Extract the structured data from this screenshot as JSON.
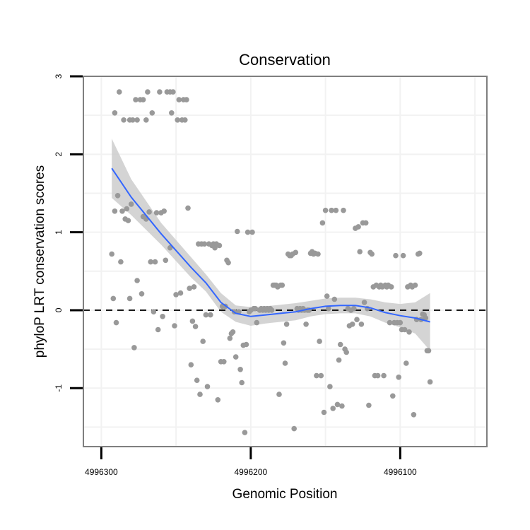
{
  "chart_data": {
    "type": "scatter",
    "title": "Conservation",
    "xlabel": "Genomic Position",
    "ylabel": "phyloP LRT conservation scores",
    "x_reversed": true,
    "xlim": [
      4996312,
      4996042
    ],
    "ylim": [
      -1.75,
      3.0
    ],
    "x_ticks": [
      4996300,
      4996200,
      4996100
    ],
    "x_tick_labels": [
      "4996300",
      "4996200",
      "4996100"
    ],
    "y_ticks": [
      3,
      2,
      1,
      0,
      -1
    ],
    "y_tick_labels": [
      "3",
      "2",
      "1",
      "0",
      "-1"
    ],
    "grid": true,
    "reference_line": {
      "y": 0,
      "style": "dashed",
      "color": "#000000"
    },
    "colors": {
      "points": "#999999",
      "smooth_line": "#3366ff",
      "confidence_band": "#cccccc",
      "panel_border": "#7f7f7f",
      "grid": "#f2f2f2"
    },
    "series": [
      {
        "type": "scatter",
        "points": [
          [
            4996293,
            0.72
          ],
          [
            4996292,
            0.15
          ],
          [
            4996291,
            1.27
          ],
          [
            4996291,
            2.53
          ],
          [
            4996290,
            -0.16
          ],
          [
            4996289,
            1.47
          ],
          [
            4996288,
            2.8
          ],
          [
            4996287,
            0.62
          ],
          [
            4996286,
            1.27
          ],
          [
            4996285,
            2.44
          ],
          [
            4996284,
            1.17
          ],
          [
            4996283,
            1.3
          ],
          [
            4996282,
            1.15
          ],
          [
            4996281,
            0.15
          ],
          [
            4996281,
            2.44
          ],
          [
            4996280,
            1.36
          ],
          [
            4996279,
            2.44
          ],
          [
            4996278,
            -0.48
          ],
          [
            4996277,
            2.7
          ],
          [
            4996276,
            0.38
          ],
          [
            4996276,
            2.44
          ],
          [
            4996274,
            2.7
          ],
          [
            4996273,
            0.21
          ],
          [
            4996272,
            1.2
          ],
          [
            4996272,
            2.7
          ],
          [
            4996270,
            1.17
          ],
          [
            4996270,
            2.44
          ],
          [
            4996269,
            2.8
          ],
          [
            4996268,
            1.26
          ],
          [
            4996267,
            0.62
          ],
          [
            4996266,
            2.53
          ],
          [
            4996265,
            -0.02
          ],
          [
            4996264,
            0.62
          ],
          [
            4996263,
            1.25
          ],
          [
            4996262,
            -0.25
          ],
          [
            4996261,
            2.8
          ],
          [
            4996260,
            1.25
          ],
          [
            4996259,
            -0.08
          ],
          [
            4996258,
            1.27
          ],
          [
            4996257,
            0.64
          ],
          [
            4996256,
            2.8
          ],
          [
            4996254,
            0.8
          ],
          [
            4996254,
            2.8
          ],
          [
            4996253,
            2.53
          ],
          [
            4996252,
            2.8
          ],
          [
            4996251,
            -0.2
          ],
          [
            4996250,
            0.2
          ],
          [
            4996249,
            2.44
          ],
          [
            4996248,
            2.7
          ],
          [
            4996247,
            0.22
          ],
          [
            4996246,
            2.44
          ],
          [
            4996245,
            2.7
          ],
          [
            4996244,
            2.44
          ],
          [
            4996243,
            2.7
          ],
          [
            4996242,
            1.31
          ],
          [
            4996241,
            0.28
          ],
          [
            4996240,
            -0.7
          ],
          [
            4996239,
            -0.14
          ],
          [
            4996238,
            0.3
          ],
          [
            4996237,
            -0.21
          ],
          [
            4996236,
            -0.9
          ],
          [
            4996235,
            0.85
          ],
          [
            4996234,
            -1.08
          ],
          [
            4996233,
            0.85
          ],
          [
            4996232,
            -0.4
          ],
          [
            4996231,
            0.85
          ],
          [
            4996230,
            -0.06
          ],
          [
            4996229,
            -0.98
          ],
          [
            4996228,
            0.85
          ],
          [
            4996227,
            -0.06
          ],
          [
            4996226,
            0.83
          ],
          [
            4996225,
            0.85
          ],
          [
            4996224,
            0.8
          ],
          [
            4996223,
            0.85
          ],
          [
            4996222,
            -1.15
          ],
          [
            4996221,
            0.83
          ],
          [
            4996220,
            -0.66
          ],
          [
            4996219,
            0.05
          ],
          [
            4996218,
            -0.66
          ],
          [
            4996217,
            0.05
          ],
          [
            4996216,
            0.64
          ],
          [
            4996215,
            0.61
          ],
          [
            4996214,
            -0.36
          ],
          [
            4996213,
            -0.3
          ],
          [
            4996212,
            -0.28
          ],
          [
            4996211,
            -0.02
          ],
          [
            4996210,
            -0.6
          ],
          [
            4996209,
            1.01
          ],
          [
            4996208,
            -0.02
          ],
          [
            4996207,
            -0.76
          ],
          [
            4996206,
            -0.93
          ],
          [
            4996205,
            -0.45
          ],
          [
            4996204,
            -1.57
          ],
          [
            4996203,
            -0.44
          ],
          [
            4996202,
            1.0
          ],
          [
            4996201,
            -0.02
          ],
          [
            4996200,
            0.0
          ],
          [
            4996199,
            1.0
          ],
          [
            4996198,
            0.02
          ],
          [
            4996197,
            0.02
          ],
          [
            4996196,
            -0.16
          ],
          [
            4996194,
            0.0
          ],
          [
            4996193,
            0.02
          ],
          [
            4996192,
            0.0
          ],
          [
            4996191,
            0.02
          ],
          [
            4996190,
            0.0
          ],
          [
            4996189,
            0.02
          ],
          [
            4996188,
            0.0
          ],
          [
            4996187,
            0.02
          ],
          [
            4996186,
            0.0
          ],
          [
            4996185,
            0.32
          ],
          [
            4996184,
            0.32
          ],
          [
            4996183,
            0.32
          ],
          [
            4996182,
            0.3
          ],
          [
            4996181,
            -1.08
          ],
          [
            4996180,
            0.32
          ],
          [
            4996179,
            0.32
          ],
          [
            4996178,
            -0.42
          ],
          [
            4996177,
            -0.68
          ],
          [
            4996176,
            -0.18
          ],
          [
            4996175,
            0.72
          ],
          [
            4996174,
            0.7
          ],
          [
            4996173,
            0.7
          ],
          [
            4996172,
            0.72
          ],
          [
            4996171,
            -1.52
          ],
          [
            4996170,
            0.74
          ],
          [
            4996169,
            0.02
          ],
          [
            4996168,
            0.0
          ],
          [
            4996167,
            0.02
          ],
          [
            4996166,
            0.0
          ],
          [
            4996165,
            0.02
          ],
          [
            4996164,
            0.0
          ],
          [
            4996163,
            -0.18
          ],
          [
            4996162,
            0.0
          ],
          [
            4996161,
            0.0
          ],
          [
            4996160,
            0.73
          ],
          [
            4996159,
            0.75
          ],
          [
            4996158,
            0.72
          ],
          [
            4996157,
            0.73
          ],
          [
            4996156,
            -0.84
          ],
          [
            4996155,
            0.72
          ],
          [
            4996154,
            -0.4
          ],
          [
            4996153,
            -0.84
          ],
          [
            4996152,
            1.12
          ],
          [
            4996151,
            -1.31
          ],
          [
            4996150,
            1.28
          ],
          [
            4996149,
            0.18
          ],
          [
            4996148,
            0.02
          ],
          [
            4996147,
            -0.98
          ],
          [
            4996146,
            1.28
          ],
          [
            4996145,
            -1.26
          ],
          [
            4996144,
            0.14
          ],
          [
            4996143,
            1.28
          ],
          [
            4996142,
            -1.21
          ],
          [
            4996141,
            -0.64
          ],
          [
            4996140,
            -0.44
          ],
          [
            4996139,
            -1.23
          ],
          [
            4996138,
            1.28
          ],
          [
            4996137,
            -0.5
          ],
          [
            4996136,
            -0.54
          ],
          [
            4996135,
            0.02
          ],
          [
            4996134,
            -0.2
          ],
          [
            4996133,
            0.0
          ],
          [
            4996132,
            -0.18
          ],
          [
            4996131,
            0.02
          ],
          [
            4996130,
            1.05
          ],
          [
            4996129,
            -0.12
          ],
          [
            4996128,
            1.07
          ],
          [
            4996127,
            0.75
          ],
          [
            4996126,
            -0.18
          ],
          [
            4996125,
            1.12
          ],
          [
            4996124,
            0.1
          ],
          [
            4996123,
            1.12
          ],
          [
            4996122,
            0.02
          ],
          [
            4996121,
            -1.22
          ],
          [
            4996120,
            0.74
          ],
          [
            4996119,
            0.72
          ],
          [
            4996118,
            0.3
          ],
          [
            4996117,
            -0.84
          ],
          [
            4996116,
            0.32
          ],
          [
            4996115,
            -0.84
          ],
          [
            4996114,
            0.3
          ],
          [
            4996113,
            0.32
          ],
          [
            4996112,
            0.3
          ],
          [
            4996111,
            -0.84
          ],
          [
            4996110,
            0.32
          ],
          [
            4996109,
            0.3
          ],
          [
            4996108,
            0.32
          ],
          [
            4996107,
            -0.16
          ],
          [
            4996106,
            0.3
          ],
          [
            4996105,
            -1.1
          ],
          [
            4996104,
            -0.16
          ],
          [
            4996103,
            0.7
          ],
          [
            4996102,
            -0.16
          ],
          [
            4996101,
            -0.86
          ],
          [
            4996100,
            -0.16
          ],
          [
            4996099,
            -0.25
          ],
          [
            4996098,
            0.7
          ],
          [
            4996097,
            -0.25
          ],
          [
            4996096,
            -0.68
          ],
          [
            4996095,
            0.3
          ],
          [
            4996094,
            -0.28
          ],
          [
            4996093,
            0.32
          ],
          [
            4996092,
            0.3
          ],
          [
            4996091,
            -1.34
          ],
          [
            4996090,
            0.32
          ],
          [
            4996089,
            -0.12
          ],
          [
            4996088,
            0.72
          ],
          [
            4996087,
            0.73
          ],
          [
            4996086,
            -0.12
          ],
          [
            4996085,
            -0.05
          ],
          [
            4996084,
            -0.06
          ],
          [
            4996083,
            -0.1
          ],
          [
            4996082,
            -0.52
          ],
          [
            4996081,
            -0.52
          ],
          [
            4996080,
            -0.92
          ]
        ]
      },
      {
        "type": "smooth",
        "method": "loess",
        "points": [
          [
            4996293,
            1.82
          ],
          [
            4996280,
            1.45
          ],
          [
            4996260,
            0.98
          ],
          [
            4996240,
            0.55
          ],
          [
            4996230,
            0.35
          ],
          [
            4996220,
            0.1
          ],
          [
            4996210,
            -0.04
          ],
          [
            4996200,
            -0.08
          ],
          [
            4996190,
            -0.06
          ],
          [
            4996180,
            -0.04
          ],
          [
            4996170,
            -0.02
          ],
          [
            4996160,
            0.02
          ],
          [
            4996150,
            0.05
          ],
          [
            4996140,
            0.06
          ],
          [
            4996130,
            0.06
          ],
          [
            4996120,
            0.03
          ],
          [
            4996110,
            -0.03
          ],
          [
            4996100,
            -0.07
          ],
          [
            4996090,
            -0.1
          ],
          [
            4996080,
            -0.15
          ]
        ],
        "ci_upper": [
          [
            4996293,
            2.2
          ],
          [
            4996280,
            1.68
          ],
          [
            4996260,
            1.12
          ],
          [
            4996240,
            0.68
          ],
          [
            4996230,
            0.46
          ],
          [
            4996220,
            0.22
          ],
          [
            4996210,
            0.06
          ],
          [
            4996200,
            0.04
          ],
          [
            4996190,
            0.05
          ],
          [
            4996180,
            0.07
          ],
          [
            4996170,
            0.09
          ],
          [
            4996160,
            0.12
          ],
          [
            4996150,
            0.15
          ],
          [
            4996140,
            0.16
          ],
          [
            4996130,
            0.16
          ],
          [
            4996120,
            0.14
          ],
          [
            4996110,
            0.1
          ],
          [
            4996100,
            0.08
          ],
          [
            4996090,
            0.1
          ],
          [
            4996080,
            0.22
          ]
        ],
        "ci_lower": [
          [
            4996293,
            1.44
          ],
          [
            4996280,
            1.22
          ],
          [
            4996260,
            0.84
          ],
          [
            4996240,
            0.42
          ],
          [
            4996230,
            0.24
          ],
          [
            4996220,
            -0.02
          ],
          [
            4996210,
            -0.15
          ],
          [
            4996200,
            -0.2
          ],
          [
            4996190,
            -0.17
          ],
          [
            4996180,
            -0.15
          ],
          [
            4996170,
            -0.13
          ],
          [
            4996160,
            -0.08
          ],
          [
            4996150,
            -0.05
          ],
          [
            4996140,
            -0.04
          ],
          [
            4996130,
            -0.04
          ],
          [
            4996120,
            -0.08
          ],
          [
            4996110,
            -0.16
          ],
          [
            4996100,
            -0.22
          ],
          [
            4996090,
            -0.3
          ],
          [
            4996080,
            -0.52
          ]
        ]
      }
    ]
  }
}
